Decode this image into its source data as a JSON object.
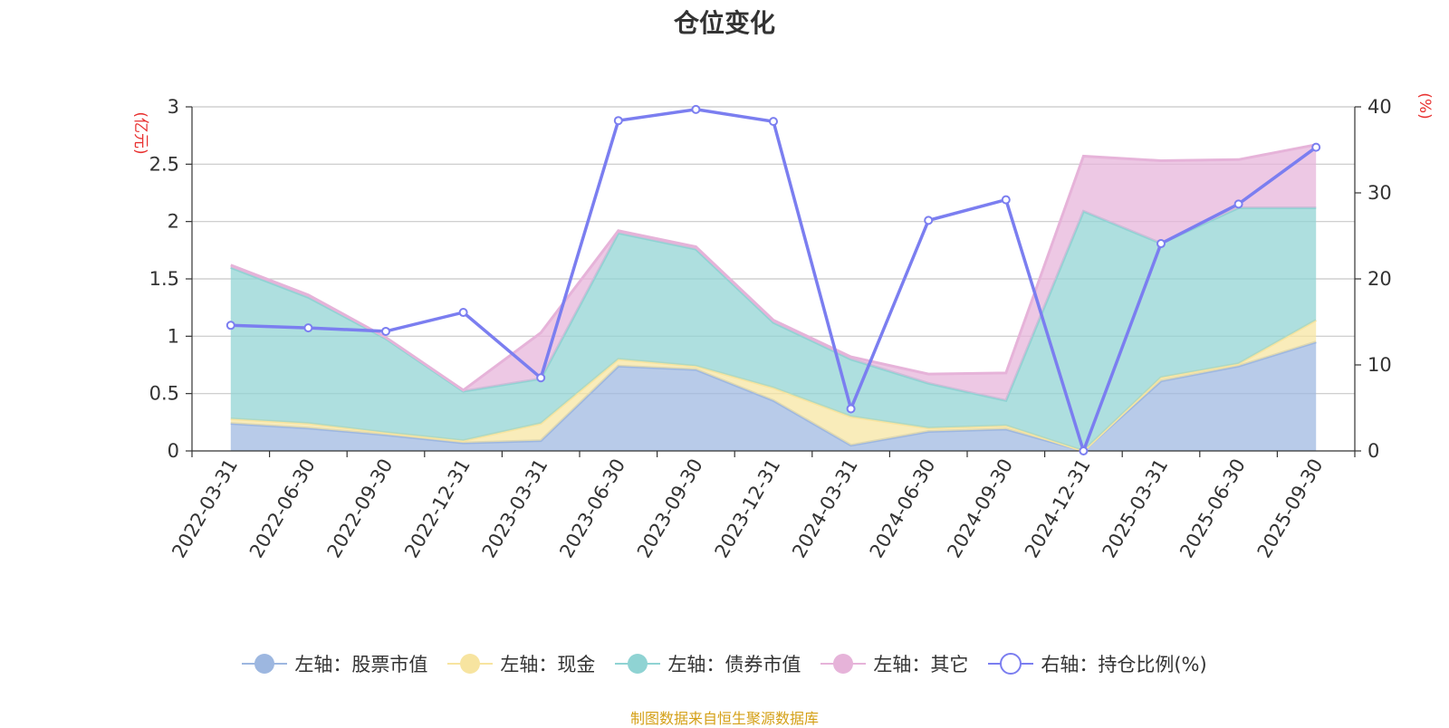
{
  "chart_data": {
    "type": "area",
    "title": "仓位变化",
    "categories": [
      "2022-03-31",
      "2022-06-30",
      "2022-09-30",
      "2022-12-31",
      "2023-03-31",
      "2023-06-30",
      "2023-09-30",
      "2023-12-31",
      "2024-03-31",
      "2024-06-30",
      "2024-09-30",
      "2024-12-31",
      "2025-03-31",
      "2025-06-30",
      "2025-09-30"
    ],
    "left_axis": {
      "label": "(亿元)",
      "ylim": [
        0,
        3
      ],
      "ticks": [
        "0",
        "0.5",
        "1",
        "1.5",
        "2",
        "2.5",
        "3"
      ],
      "tick_values": [
        0,
        0.5,
        1,
        1.5,
        2,
        2.5,
        3
      ]
    },
    "right_axis": {
      "label": "(%)",
      "ylim": [
        0,
        40
      ],
      "ticks": [
        "0",
        "10",
        "20",
        "30",
        "40"
      ],
      "tick_values": [
        0,
        10,
        20,
        30,
        40
      ]
    },
    "stacked": true,
    "series": [
      {
        "name": "左轴：股票市值",
        "axis": "left",
        "kind": "area",
        "color": "#9db7e0",
        "values": [
          0.24,
          0.2,
          0.14,
          0.07,
          0.09,
          0.74,
          0.71,
          0.44,
          0.05,
          0.17,
          0.19,
          0.0,
          0.61,
          0.74,
          0.95
        ]
      },
      {
        "name": "左轴：现金",
        "axis": "left",
        "kind": "area",
        "color": "#f7e4a0",
        "values": [
          0.04,
          0.04,
          0.02,
          0.02,
          0.15,
          0.06,
          0.03,
          0.11,
          0.25,
          0.03,
          0.03,
          0.0,
          0.03,
          0.02,
          0.19
        ]
      },
      {
        "name": "左轴：债券市值",
        "axis": "left",
        "kind": "area",
        "color": "#8fd3d3",
        "values": [
          1.32,
          1.1,
          0.82,
          0.43,
          0.39,
          1.1,
          1.02,
          0.57,
          0.5,
          0.39,
          0.22,
          2.09,
          1.17,
          1.36,
          0.98
        ]
      },
      {
        "name": "左轴：其它",
        "axis": "left",
        "kind": "area",
        "color": "#e6b3d9",
        "values": [
          0.02,
          0.02,
          0.01,
          0.01,
          0.4,
          0.02,
          0.02,
          0.02,
          0.02,
          0.08,
          0.24,
          0.48,
          0.72,
          0.42,
          0.55
        ]
      },
      {
        "name": "右轴：持仓比例(%)",
        "axis": "right",
        "kind": "line",
        "color": "#7b7ef0",
        "values": [
          14.6,
          14.3,
          13.9,
          16.1,
          8.5,
          38.4,
          39.7,
          38.3,
          4.9,
          26.8,
          29.2,
          0.0,
          24.1,
          28.7,
          35.3
        ]
      }
    ]
  },
  "footer": "制图数据来自恒生聚源数据库"
}
